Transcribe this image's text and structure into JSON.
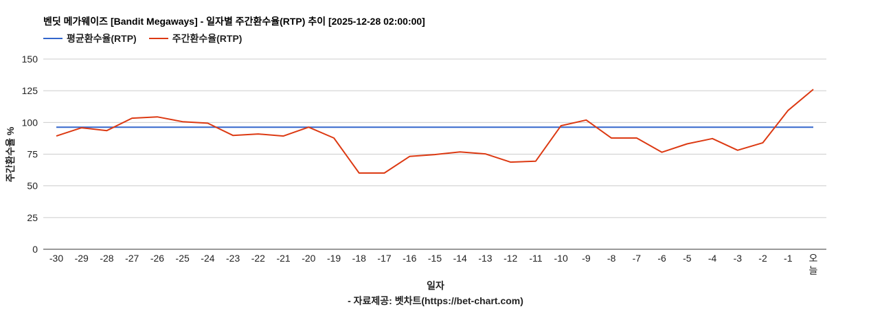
{
  "chart": {
    "title": "벤딧 메가웨이즈 [Bandit Megaways] - 일자별 주간환수율(RTP) 추이 [2025-12-28 02:00:00]",
    "xlabel": "일자",
    "ylabel": "주간환수율 %",
    "source": "- 자료제공: 벳차트(https://bet-chart.com)"
  },
  "legend": [
    {
      "label": "평균환수율(RTP)",
      "color": "#3366cc"
    },
    {
      "label": "주간환수율(RTP)",
      "color": "#dc3912"
    }
  ],
  "chart_data": {
    "type": "line",
    "title": "벤딧 메가웨이즈 [Bandit Megaways] - 일자별 주간환수율(RTP) 추이 [2025-12-28 02:00:00]",
    "xlabel": "일자",
    "ylabel": "주간환수율 %",
    "ylim": [
      0,
      150
    ],
    "yticks": [
      0,
      25,
      50,
      75,
      100,
      125,
      150
    ],
    "grid": true,
    "legend_position": "top",
    "categories": [
      "-30",
      "-29",
      "-28",
      "-27",
      "-26",
      "-25",
      "-24",
      "-23",
      "-22",
      "-21",
      "-20",
      "-19",
      "-18",
      "-17",
      "-16",
      "-15",
      "-14",
      "-13",
      "-12",
      "-11",
      "-10",
      "-9",
      "-8",
      "-7",
      "-6",
      "-5",
      "-4",
      "-3",
      "-2",
      "-1",
      "오늘"
    ],
    "series": [
      {
        "name": "평균환수율(RTP)",
        "color": "#3366cc",
        "values": [
          96.3,
          96.3,
          96.3,
          96.3,
          96.3,
          96.3,
          96.3,
          96.3,
          96.3,
          96.3,
          96.3,
          96.3,
          96.3,
          96.3,
          96.3,
          96.3,
          96.3,
          96.3,
          96.3,
          96.3,
          96.3,
          96.3,
          96.3,
          96.3,
          96.3,
          96.3,
          96.3,
          96.3,
          96.3,
          96.3,
          96.3
        ]
      },
      {
        "name": "주간환수율(RTP)",
        "color": "#dc3912",
        "values": [
          89.3,
          95.8,
          93.6,
          103.4,
          104.4,
          100.6,
          99.4,
          89.8,
          90.9,
          89.3,
          96.3,
          87.7,
          60.1,
          60.1,
          73.2,
          74.7,
          76.8,
          75.2,
          68.7,
          69.5,
          97.4,
          101.9,
          87.7,
          87.7,
          76.5,
          83.1,
          87.3,
          78.1,
          84.0,
          109.5,
          126.1
        ]
      }
    ]
  }
}
